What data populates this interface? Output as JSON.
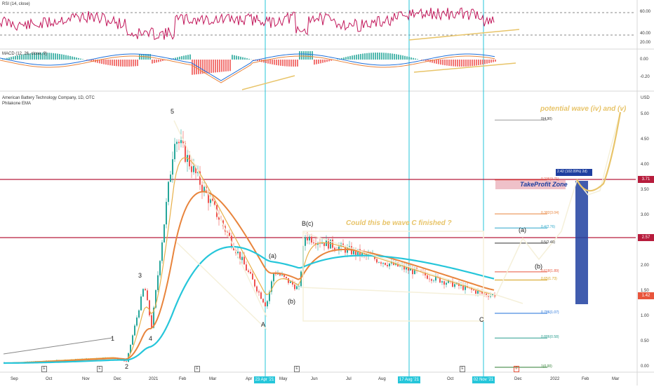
{
  "rsi": {
    "title": "RSI (14, close)",
    "levels": [
      "60.00",
      "40.00",
      "20.00"
    ]
  },
  "macd": {
    "title": "MACD (12, 26, close, 9)",
    "levels": [
      "0.00",
      "-0.20"
    ]
  },
  "main": {
    "symbol_line": "American Battery Technology Company, 1D, OTC",
    "indicator": "Philakone EMA",
    "currency": "USD",
    "price_ticks": [
      "5.00",
      "4.50",
      "4.00",
      "3.50",
      "3.00",
      "2.50",
      "2.00",
      "1.50",
      "1.00",
      "0.50",
      "0.00"
    ],
    "badges": [
      {
        "text": "3.71",
        "color": "#b71c3c"
      },
      {
        "text": "2.57",
        "color": "#b71c3c"
      },
      {
        "text": "1.42",
        "color": "#e8553c"
      }
    ]
  },
  "time_axis": {
    "labels": [
      "Sep",
      "Oct",
      "Nov",
      "Dec",
      "2021",
      "Feb",
      "Mar",
      "Apr",
      "May",
      "Jun",
      "Jul",
      "Aug",
      "Oct",
      "Dec",
      "2022",
      "Feb",
      "Mar"
    ],
    "date_badges": [
      "23 Apr '21",
      "17 Aug '21",
      "02 Nov '21"
    ],
    "event_marker": "E"
  },
  "annotations": {
    "wave_labels": [
      "1",
      "2",
      "3",
      "4",
      "5",
      "A",
      "(a)",
      "(b)",
      "B(c)",
      "C",
      "(a)",
      "(b)"
    ],
    "question": "Could this be wave C finished ?",
    "potential": "potential wave (iv) and (v)",
    "take_profit": "TakeProfit Zone",
    "measure": "2.42 (102.09%) 2d)"
  },
  "fib_levels": [
    {
      "label": "0(4.90)",
      "color": "#ffffff"
    },
    {
      "label": "0.236(3.71)",
      "color": "#e8553c"
    },
    {
      "label": "0.382(3.04)",
      "color": "#e8843c"
    },
    {
      "label": "0.4(2.76)",
      "color": "#2aa6c9"
    },
    {
      "label": "0.5(2.46)",
      "color": "#333333"
    },
    {
      "label": "0.618(1.89)",
      "color": "#e8553c"
    },
    {
      "label": "0.65(1.73)",
      "color": "#d4a017"
    },
    {
      "label": "0.786(1.07)",
      "color": "#1e6fd9"
    },
    {
      "label": "0.886(0.58)",
      "color": "#2a9d8f"
    },
    {
      "label": "1(0.00)",
      "color": "#2e7d32"
    }
  ],
  "colors": {
    "rsi_line": "#c2185b",
    "macd_line": "#1e6fd9",
    "signal_line": "#e8843c",
    "ema_fast": "#e8b04a",
    "ema_mid": "#e8843c",
    "ema_slow": "#26c6da",
    "annotation": "#e8c469",
    "resistance": "#b71c3c"
  },
  "chart_data": {
    "type": "candlestick",
    "title": "American Battery Technology Company, 1D, OTC",
    "ylabel": "USD",
    "ylim": [
      0,
      5.5
    ],
    "series": [
      {
        "name": "close_approx",
        "dates": [
          "2020-09",
          "2020-10",
          "2020-11",
          "2020-12",
          "2021-01",
          "2021-02",
          "2021-03",
          "2021-04",
          "2021-05",
          "2021-06",
          "2021-07",
          "2021-08",
          "2021-09",
          "2021-10",
          "2021-11"
        ],
        "values": [
          0.1,
          0.12,
          0.14,
          0.2,
          1.5,
          4.5,
          2.6,
          1.2,
          1.9,
          2.6,
          2.0,
          1.6,
          1.45,
          1.4,
          1.42
        ]
      }
    ],
    "key_levels": [
      3.71,
      2.57,
      1.42
    ]
  }
}
